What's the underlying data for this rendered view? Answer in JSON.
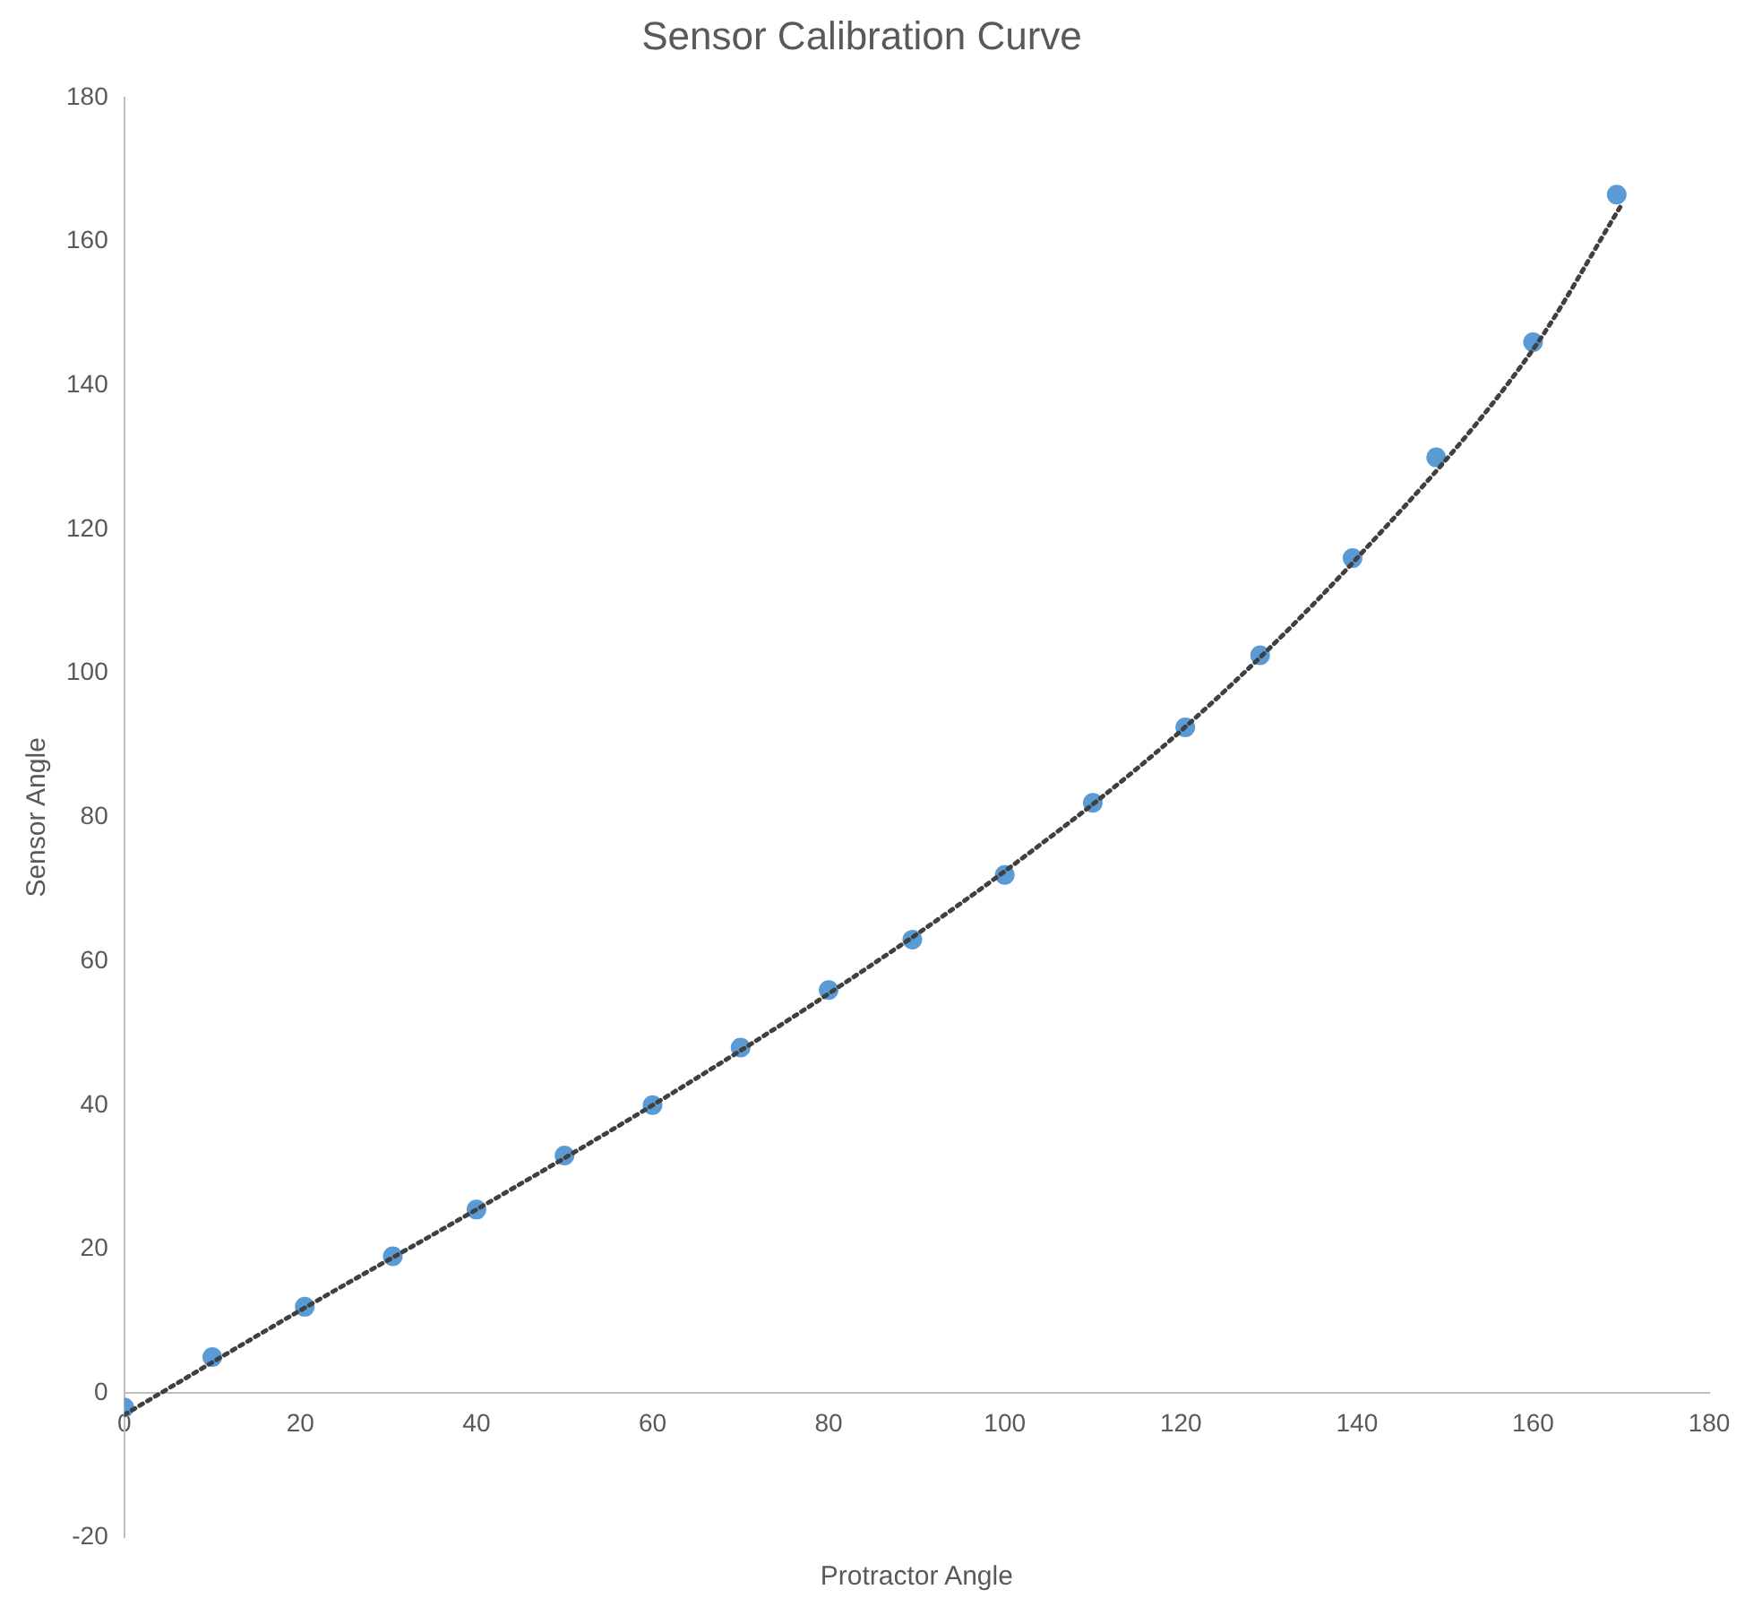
{
  "chart_data": {
    "type": "scatter",
    "title": "Sensor Calibration Curve",
    "xlabel": "Protractor Angle",
    "ylabel": "Sensor Angle",
    "xlim": [
      0,
      180
    ],
    "xticks": [
      0,
      20,
      40,
      60,
      80,
      100,
      120,
      140,
      160,
      180
    ],
    "ylim": [
      -20,
      180
    ],
    "yticks": [
      -20,
      0,
      20,
      40,
      60,
      80,
      100,
      120,
      140,
      160,
      180
    ],
    "grid": false,
    "legend": false,
    "series": [
      {
        "color": "#5b9bd5",
        "marker": "circle",
        "x": [
          0,
          10,
          20.5,
          30.5,
          40,
          50,
          60,
          70,
          80,
          89.5,
          100,
          110,
          120.5,
          129,
          139.5,
          149,
          160,
          169.5
        ],
        "values": [
          -2,
          5,
          12,
          19,
          25.5,
          33,
          40,
          48,
          56,
          63,
          72,
          82,
          92.5,
          102.5,
          116,
          130,
          146,
          166.5
        ]
      },
      {
        "type": "line",
        "color": "#404040",
        "line_style": "dotted",
        "marker": "none",
        "x": [
          0,
          20,
          40,
          60,
          80,
          100,
          120,
          140,
          160,
          170
        ],
        "values": [
          -3,
          11.5,
          25.5,
          40,
          55.5,
          72.5,
          92,
          116,
          145,
          165
        ]
      }
    ]
  }
}
